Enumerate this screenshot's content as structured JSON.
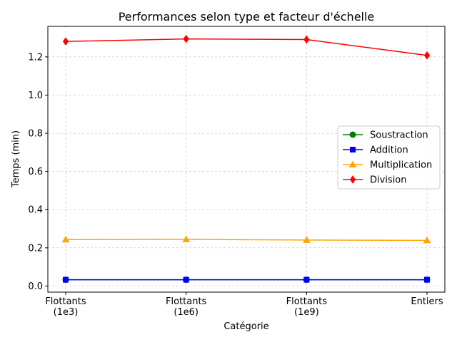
{
  "chart_data": {
    "type": "line",
    "title": "Performances selon type et facteur d'échelle",
    "xlabel": "Catégorie",
    "ylabel": "Temps (min)",
    "categories": [
      "Flottants\n(1e3)",
      "Flottants\n(1e6)",
      "Flottants\n(1e9)",
      "Entiers"
    ],
    "ylim": [
      -0.032,
      1.36
    ],
    "yticks": [
      0.0,
      0.2,
      0.4,
      0.6,
      0.8,
      1.0,
      1.2
    ],
    "ytick_labels": [
      "0.0",
      "0.2",
      "0.4",
      "0.6",
      "0.8",
      "1.0",
      "1.2"
    ],
    "grid": true,
    "legend_position": "center-right",
    "series": [
      {
        "name": "Soustraction",
        "color": "#008000",
        "marker": "circle",
        "values": [
          0.033,
          0.033,
          0.033,
          0.033
        ]
      },
      {
        "name": "Addition",
        "color": "#0000ff",
        "marker": "square",
        "values": [
          0.033,
          0.033,
          0.033,
          0.033
        ]
      },
      {
        "name": "Multiplication",
        "color": "#ffa500",
        "marker": "triangle",
        "values": [
          0.243,
          0.244,
          0.241,
          0.239
        ]
      },
      {
        "name": "Division",
        "color": "#ff0000",
        "marker": "diamond",
        "values": [
          1.281,
          1.294,
          1.291,
          1.208
        ]
      }
    ]
  }
}
